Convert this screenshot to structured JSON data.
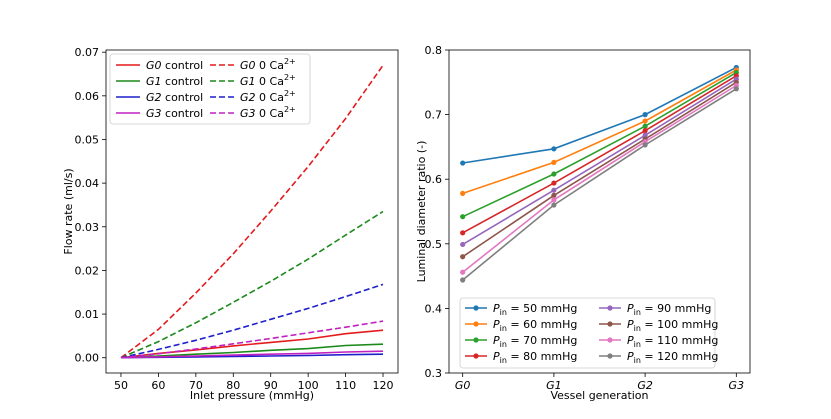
{
  "chart_data": [
    {
      "type": "line",
      "title": "",
      "xlabel": "Inlet pressure (mmHg)",
      "ylabel": "Flow rate (ml/s)",
      "xlim": [
        46,
        124
      ],
      "ylim": [
        -0.0035,
        0.0705
      ],
      "xticks": [
        50,
        60,
        70,
        80,
        90,
        100,
        110,
        120
      ],
      "xtick_labels": [
        "50",
        "60",
        "70",
        "80",
        "90",
        "100",
        "110",
        "120"
      ],
      "yticks": [
        0.0,
        0.01,
        0.02,
        0.03,
        0.04,
        0.05,
        0.06,
        0.07
      ],
      "ytick_labels": [
        "0.00",
        "0.01",
        "0.02",
        "0.03",
        "0.04",
        "0.05",
        "0.06",
        "0.07"
      ],
      "legend_position": "top-left",
      "legend_columns": 2,
      "x": [
        50,
        60,
        70,
        80,
        90,
        100,
        110,
        120
      ],
      "series": [
        {
          "gen": "G0",
          "label": " control",
          "color": "#e41a1c",
          "dash": "solid",
          "values": [
            0.0,
            0.001,
            0.0018,
            0.0027,
            0.0035,
            0.0043,
            0.0055,
            0.0063
          ]
        },
        {
          "gen": "G1",
          "label": " control",
          "color": "#1a8a1a",
          "dash": "solid",
          "values": [
            0.0,
            0.0004,
            0.0008,
            0.0012,
            0.0017,
            0.0021,
            0.0028,
            0.0031
          ]
        },
        {
          "gen": "G2",
          "label": " control",
          "color": "#1f1fcc",
          "dash": "solid",
          "values": [
            0.0,
            0.0001,
            0.0002,
            0.0003,
            0.0004,
            0.0005,
            0.0007,
            0.0008
          ]
        },
        {
          "gen": "G3",
          "label": " control",
          "color": "#c020c0",
          "dash": "solid",
          "values": [
            0.0,
            0.0002,
            0.0004,
            0.0006,
            0.0008,
            0.001,
            0.0013,
            0.0015
          ]
        },
        {
          "gen": "G0",
          "label": " 0 Ca",
          "sup": "2+",
          "color": "#e41a1c",
          "dash": "dashed",
          "values": [
            0.0,
            0.0065,
            0.0148,
            0.0238,
            0.0336,
            0.0438,
            0.0548,
            0.067
          ]
        },
        {
          "gen": "G1",
          "label": " 0 Ca",
          "sup": "2+",
          "color": "#1a8a1a",
          "dash": "dashed",
          "values": [
            0.0,
            0.0037,
            0.008,
            0.0127,
            0.0175,
            0.0226,
            0.0281,
            0.0335
          ]
        },
        {
          "gen": "G2",
          "label": " 0 Ca",
          "sup": "2+",
          "color": "#1f1fcc",
          "dash": "dashed",
          "values": [
            0.0,
            0.0019,
            0.004,
            0.0063,
            0.0088,
            0.0113,
            0.014,
            0.0168
          ]
        },
        {
          "gen": "G3",
          "label": " 0 Ca",
          "sup": "2+",
          "color": "#c020c0",
          "dash": "dashed",
          "values": [
            0.0,
            0.0009,
            0.002,
            0.0032,
            0.0044,
            0.0057,
            0.007,
            0.0084
          ]
        }
      ]
    },
    {
      "type": "line",
      "title": "",
      "xlabel": "Vessel generation",
      "ylabel": "Luminal diameter ratio (-)",
      "xlim": [
        -0.15,
        3.15
      ],
      "ylim": [
        0.3,
        0.8
      ],
      "yticks": [
        0.3,
        0.4,
        0.5,
        0.6,
        0.7,
        0.8
      ],
      "ytick_labels": [
        "0.3",
        "0.4",
        "0.5",
        "0.6",
        "0.7",
        "0.8"
      ],
      "categories": [
        "G0",
        "G1",
        "G2",
        "G3"
      ],
      "legend_position": "bottom-center",
      "legend_columns": 2,
      "series": [
        {
          "label": " = 50 mmHg",
          "color": "#1f77b4",
          "values": [
            0.625,
            0.647,
            0.7,
            0.773
          ]
        },
        {
          "label": " = 60 mmHg",
          "color": "#ff7f0e",
          "values": [
            0.578,
            0.626,
            0.69,
            0.769
          ]
        },
        {
          "label": " = 70 mmHg",
          "color": "#2ca02c",
          "values": [
            0.542,
            0.608,
            0.682,
            0.765
          ]
        },
        {
          "label": " = 80 mmHg",
          "color": "#d62728",
          "values": [
            0.517,
            0.594,
            0.675,
            0.76
          ]
        },
        {
          "label": " = 90 mmHg",
          "color": "#9467bd",
          "values": [
            0.499,
            0.583,
            0.668,
            0.755
          ]
        },
        {
          "label": " = 100 mmHg",
          "color": "#8c564b",
          "values": [
            0.48,
            0.575,
            0.662,
            0.75
          ]
        },
        {
          "label": " = 110 mmHg",
          "color": "#e377c2",
          "values": [
            0.456,
            0.568,
            0.658,
            0.745
          ]
        },
        {
          "label": " = 120 mmHg",
          "color": "#7f7f7f",
          "values": [
            0.444,
            0.56,
            0.653,
            0.74
          ]
        }
      ],
      "legend_prefix": "P",
      "legend_prefix_sub": "in"
    }
  ]
}
